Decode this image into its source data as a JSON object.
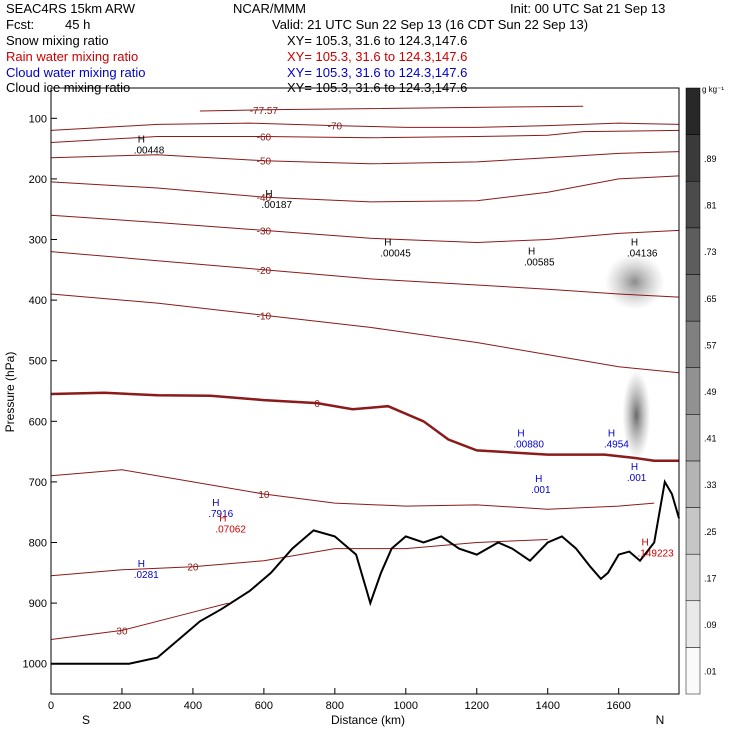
{
  "header": {
    "model": "SEAC4RS 15km ARW",
    "org": "NCAR/MMM",
    "init": "Init: 00 UTC Sat 21 Sep 13",
    "fcst_label": "Fcst:",
    "fcst_value": "45 h",
    "valid": "Valid: 21 UTC Sun 22 Sep 13 (16 CDT Sun 22 Sep 13)"
  },
  "legend": [
    {
      "label": "Snow mixing ratio",
      "xy": "XY= 105.3, 31.6 to 124.3,147.6",
      "color": "#000000"
    },
    {
      "label": "Rain water mixing ratio",
      "xy": "XY= 105.3, 31.6 to 124.3,147.6",
      "color": "#cc0000"
    },
    {
      "label": "Cloud water mixing ratio",
      "xy": "XY= 105.3, 31.6 to 124.3,147.6",
      "color": "#0000cc"
    },
    {
      "label": "Cloud ice mixing ratio",
      "xy": "XY= 105.3, 31.6 to 124.3,147.6",
      "color": "#000000"
    }
  ],
  "colorbar": {
    "unit": "g kg⁻¹",
    "levels": [
      ".01",
      ".09",
      ".17",
      ".25",
      ".33",
      ".41",
      ".49",
      ".57",
      ".65",
      ".73",
      ".81",
      ".89"
    ]
  },
  "axes": {
    "xlabel": "Distance (km)",
    "ylabel": "Pressure (hPa)",
    "left_end": "S",
    "right_end": "N"
  },
  "chart_data": {
    "type": "contour",
    "x": {
      "min": 0,
      "max": 1770,
      "ticks": [
        0,
        200,
        400,
        600,
        800,
        1000,
        1200,
        1400,
        1600
      ]
    },
    "y": {
      "min": 50,
      "max": 1050,
      "scale": "linear-reversed",
      "ticks": [
        100,
        200,
        300,
        400,
        500,
        600,
        700,
        800,
        900,
        1000
      ]
    },
    "terrain": [
      [
        0,
        1000
      ],
      [
        220,
        1000
      ],
      [
        300,
        990
      ],
      [
        360,
        960
      ],
      [
        420,
        930
      ],
      [
        480,
        910
      ],
      [
        560,
        880
      ],
      [
        620,
        850
      ],
      [
        680,
        810
      ],
      [
        700,
        800
      ],
      [
        740,
        780
      ],
      [
        800,
        790
      ],
      [
        860,
        820
      ],
      [
        890,
        880
      ],
      [
        900,
        900
      ],
      [
        930,
        850
      ],
      [
        960,
        810
      ],
      [
        1000,
        790
      ],
      [
        1050,
        800
      ],
      [
        1100,
        790
      ],
      [
        1150,
        810
      ],
      [
        1200,
        820
      ],
      [
        1260,
        800
      ],
      [
        1300,
        810
      ],
      [
        1350,
        830
      ],
      [
        1400,
        800
      ],
      [
        1440,
        790
      ],
      [
        1480,
        810
      ],
      [
        1520,
        840
      ],
      [
        1550,
        860
      ],
      [
        1570,
        850
      ],
      [
        1600,
        820
      ],
      [
        1630,
        815
      ],
      [
        1660,
        830
      ],
      [
        1700,
        800
      ],
      [
        1730,
        700
      ],
      [
        1750,
        720
      ],
      [
        1770,
        760
      ]
    ],
    "temperature_contours": [
      {
        "label": "-77.57",
        "pts": [
          [
            420,
            88
          ],
          [
            600,
            86
          ],
          [
            900,
            84
          ],
          [
            1200,
            82
          ],
          [
            1500,
            80
          ]
        ]
      },
      {
        "label": "-70",
        "pts": [
          [
            0,
            120
          ],
          [
            300,
            110
          ],
          [
            560,
            108
          ],
          [
            800,
            112
          ],
          [
            1000,
            115
          ],
          [
            1200,
            115
          ],
          [
            1400,
            112
          ],
          [
            1600,
            108
          ],
          [
            1770,
            110
          ]
        ]
      },
      {
        "label": "-60",
        "pts": [
          [
            0,
            140
          ],
          [
            300,
            130
          ],
          [
            600,
            130
          ],
          [
            900,
            132
          ],
          [
            1200,
            130
          ],
          [
            1400,
            128
          ],
          [
            1500,
            122
          ],
          [
            1770,
            120
          ]
        ]
      },
      {
        "label": "-50",
        "pts": [
          [
            0,
            165
          ],
          [
            300,
            160
          ],
          [
            600,
            170
          ],
          [
            900,
            175
          ],
          [
            1200,
            172
          ],
          [
            1400,
            165
          ],
          [
            1600,
            158
          ],
          [
            1770,
            155
          ]
        ]
      },
      {
        "label": "-40",
        "pts": [
          [
            0,
            205
          ],
          [
            300,
            215
          ],
          [
            600,
            230
          ],
          [
            900,
            238
          ],
          [
            1200,
            236
          ],
          [
            1400,
            222
          ],
          [
            1600,
            200
          ],
          [
            1770,
            195
          ]
        ]
      },
      {
        "label": "-30",
        "pts": [
          [
            0,
            260
          ],
          [
            300,
            272
          ],
          [
            600,
            285
          ],
          [
            900,
            298
          ],
          [
            1200,
            305
          ],
          [
            1400,
            300
          ],
          [
            1600,
            290
          ],
          [
            1770,
            285
          ]
        ]
      },
      {
        "label": "-20",
        "pts": [
          [
            0,
            320
          ],
          [
            300,
            335
          ],
          [
            600,
            350
          ],
          [
            900,
            365
          ],
          [
            1200,
            375
          ],
          [
            1400,
            382
          ],
          [
            1600,
            390
          ],
          [
            1770,
            395
          ]
        ]
      },
      {
        "label": "-10",
        "pts": [
          [
            0,
            390
          ],
          [
            300,
            405
          ],
          [
            600,
            425
          ],
          [
            900,
            445
          ],
          [
            1200,
            470
          ],
          [
            1400,
            490
          ],
          [
            1600,
            510
          ],
          [
            1770,
            520
          ]
        ]
      },
      {
        "label": "0",
        "pts": [
          [
            0,
            555
          ],
          [
            150,
            553
          ],
          [
            300,
            557
          ],
          [
            450,
            558
          ],
          [
            600,
            565
          ],
          [
            750,
            570
          ],
          [
            850,
            580
          ],
          [
            950,
            575
          ],
          [
            1050,
            600
          ],
          [
            1120,
            630
          ],
          [
            1200,
            648
          ],
          [
            1400,
            655
          ],
          [
            1560,
            655
          ],
          [
            1640,
            660
          ],
          [
            1700,
            665
          ],
          [
            1770,
            665
          ]
        ]
      },
      {
        "label": "10",
        "pts": [
          [
            0,
            690
          ],
          [
            200,
            680
          ],
          [
            400,
            700
          ],
          [
            600,
            720
          ],
          [
            800,
            735
          ],
          [
            1000,
            740
          ],
          [
            1200,
            738
          ],
          [
            1400,
            745
          ],
          [
            1600,
            740
          ],
          [
            1700,
            735
          ]
        ]
      },
      {
        "label": "20",
        "pts": [
          [
            0,
            855
          ],
          [
            200,
            845
          ],
          [
            400,
            840
          ],
          [
            600,
            830
          ],
          [
            800,
            810
          ],
          [
            1000,
            810
          ],
          [
            1200,
            800
          ],
          [
            1400,
            795
          ]
        ]
      },
      {
        "label": "30",
        "pts": [
          [
            0,
            960
          ],
          [
            200,
            945
          ],
          [
            400,
            915
          ],
          [
            500,
            900
          ]
        ]
      }
    ],
    "cloud_ice_max": [
      {
        "label": ".00448",
        "x": 250,
        "p": 150
      },
      {
        "label": ".00187",
        "x": 610,
        "p": 240
      },
      {
        "label": ".00045",
        "x": 945,
        "p": 320
      },
      {
        "label": ".00585",
        "x": 1350,
        "p": 335
      },
      {
        "label": ".04136",
        "x": 1640,
        "p": 320
      }
    ],
    "cloud_water_max": [
      {
        "label": ".7916",
        "x": 460,
        "p": 750
      },
      {
        "label": ".0281",
        "x": 250,
        "p": 850
      },
      {
        "label": ".4954",
        "x": 1575,
        "p": 635
      },
      {
        "label": ".001",
        "x": 1640,
        "p": 690
      },
      {
        "label": ".001",
        "x": 1370,
        "p": 710
      },
      {
        "label": ".00880",
        "x": 1320,
        "p": 635
      }
    ],
    "rain_max": [
      {
        "label": ".07062",
        "x": 480,
        "p": 775
      },
      {
        "label": ".149223",
        "x": 1670,
        "p": 815
      }
    ],
    "shading": [
      {
        "x": 1645,
        "p": 370,
        "value": 0.65
      },
      {
        "x": 1650,
        "p": 590,
        "value": 0.85
      }
    ]
  }
}
